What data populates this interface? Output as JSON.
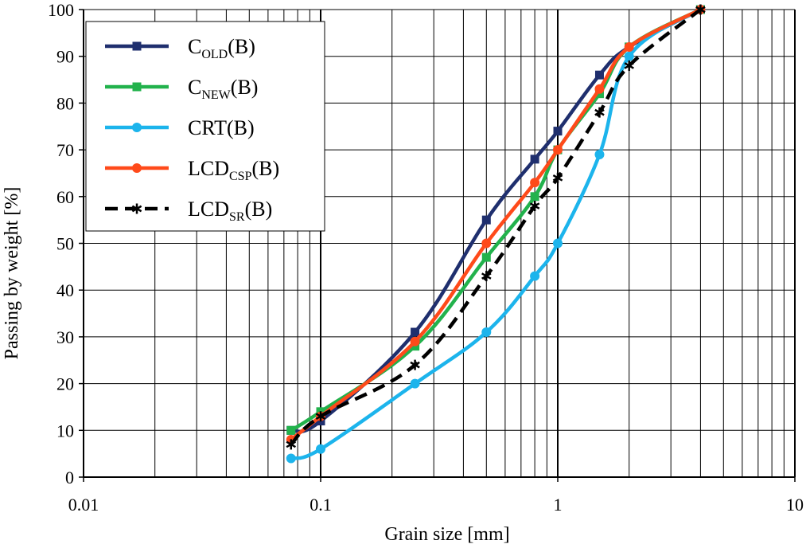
{
  "chart_data": {
    "type": "line",
    "xlabel": "Grain size [mm]",
    "ylabel": "Passing by weight [%]",
    "xscale": "log",
    "xlim": [
      0.01,
      10
    ],
    "ylim": [
      0,
      100
    ],
    "x_ticks": [
      {
        "value": 0.01,
        "label": "0.01"
      },
      {
        "value": 0.1,
        "label": "0.1"
      },
      {
        "value": 1,
        "label": "1"
      },
      {
        "value": 10,
        "label": "10"
      }
    ],
    "y_ticks": [
      0,
      10,
      20,
      30,
      40,
      50,
      60,
      70,
      80,
      90,
      100
    ],
    "grid": true,
    "legend_position": "top-left",
    "series": [
      {
        "key": "cold",
        "name": "C",
        "sub": "OLD",
        "suffix": "(B)",
        "color": "#1f2f6e",
        "marker": "square",
        "dash": false,
        "x": [
          0.075,
          0.1,
          0.25,
          0.5,
          0.8,
          1.0,
          1.5,
          2.0,
          4.0
        ],
        "y": [
          10,
          12,
          31,
          55,
          68,
          74,
          86,
          92,
          100
        ]
      },
      {
        "key": "cnew",
        "name": "C",
        "sub": "NEW",
        "suffix": "(B)",
        "color": "#22b24c",
        "marker": "square",
        "dash": false,
        "x": [
          0.075,
          0.1,
          0.25,
          0.5,
          0.8,
          1.0,
          1.5,
          2.0,
          4.0
        ],
        "y": [
          10,
          14,
          28,
          47,
          60,
          70,
          82,
          92,
          100
        ]
      },
      {
        "key": "crt",
        "name": "CRT",
        "sub": "",
        "suffix": "(B)",
        "color": "#1cb4ec",
        "marker": "circle",
        "dash": false,
        "x": [
          0.075,
          0.1,
          0.25,
          0.5,
          0.8,
          1.0,
          1.5,
          2.0,
          4.0
        ],
        "y": [
          4,
          6,
          20,
          31,
          43,
          50,
          69,
          90,
          100
        ]
      },
      {
        "key": "lcdcsp",
        "name": "LCD",
        "sub": "CSP",
        "suffix": "(B)",
        "color": "#ff4a1a",
        "marker": "circle",
        "dash": false,
        "x": [
          0.075,
          0.1,
          0.25,
          0.5,
          0.8,
          1.0,
          1.5,
          2.0,
          4.0
        ],
        "y": [
          8,
          13,
          29,
          50,
          63,
          70,
          83,
          92,
          100
        ]
      },
      {
        "key": "lcdsr",
        "name": "LCD",
        "sub": "SR",
        "suffix": "(B)",
        "color": "#000000",
        "marker": "star",
        "dash": true,
        "x": [
          0.075,
          0.1,
          0.25,
          0.5,
          0.8,
          1.0,
          1.5,
          2.0,
          4.0
        ],
        "y": [
          7,
          13,
          24,
          43,
          58,
          64,
          78,
          88,
          100
        ]
      }
    ]
  }
}
